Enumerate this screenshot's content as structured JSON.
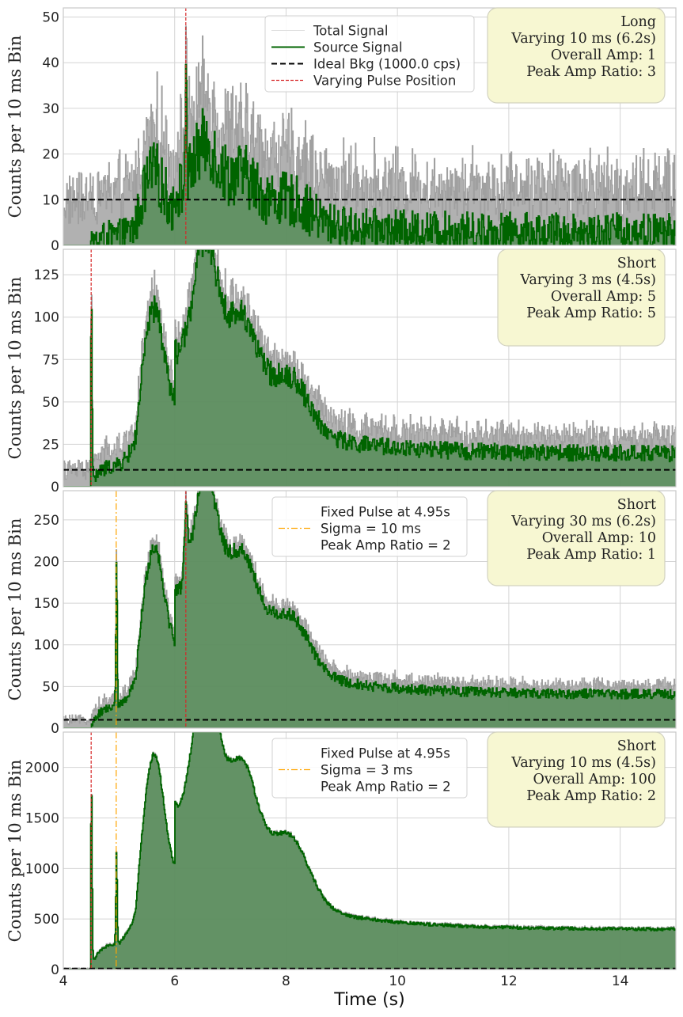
{
  "chart_data": [
    {
      "type": "line",
      "panel": "top",
      "ylabel": "Counts per 10 ms Bin",
      "xlabel": "",
      "xlim": [
        4,
        15
      ],
      "ylim": [
        0,
        52
      ],
      "yticks": [
        0,
        10,
        20,
        30,
        40,
        50
      ],
      "xticks": [
        4,
        6,
        8,
        10,
        12,
        14
      ],
      "background_level": 10,
      "varying_pulse_x": 6.2,
      "fixed_pulse_x": null,
      "source_scale": 16.5,
      "pulse_peak": 42,
      "varying_width_s": 0.01,
      "noise": 5,
      "series": [
        {
          "name": "Total Signal",
          "color": "#a0a0a0"
        },
        {
          "name": "Source Signal",
          "color": "#006400"
        },
        {
          "name": "Ideal Bkg (1000.0 cps)",
          "color": "#000000"
        },
        {
          "name": "Varying Pulse Position",
          "color": "#d62728"
        }
      ],
      "legend": {
        "placement": "top-center",
        "entries": [
          "Total Signal",
          "Source Signal",
          "Ideal Bkg (1000.0 cps)",
          "Varying Pulse Position"
        ]
      },
      "info_box": [
        "Long",
        "Varying 10 ms (6.2s)",
        "Overall Amp: 1",
        "Peak Amp Ratio: 3"
      ]
    },
    {
      "type": "line",
      "panel": "second",
      "ylabel": "Counts per 10 ms Bin",
      "xlabel": "",
      "xlim": [
        4,
        15
      ],
      "ylim": [
        0,
        140
      ],
      "yticks": [
        0,
        25,
        50,
        75,
        100,
        125
      ],
      "xticks": [
        4,
        6,
        8,
        10,
        12,
        14
      ],
      "background_level": 10,
      "varying_pulse_x": 4.5,
      "fixed_pulse_x": null,
      "source_scale": 108,
      "pulse_peak": 108,
      "varying_width_s": 0.003,
      "noise": 6,
      "series": [
        {
          "name": "Total Signal",
          "color": "#a0a0a0"
        },
        {
          "name": "Source Signal",
          "color": "#006400"
        },
        {
          "name": "Ideal Bkg (1000.0 cps)",
          "color": "#000000"
        },
        {
          "name": "Varying Pulse Position",
          "color": "#d62728"
        }
      ],
      "legend": null,
      "info_box": [
        "Short",
        "Varying 3 ms (4.5s)",
        "Overall Amp: 5",
        "Peak Amp Ratio: 5"
      ]
    },
    {
      "type": "line",
      "panel": "third",
      "ylabel": "Counts per 10 ms Bin",
      "xlabel": "",
      "xlim": [
        4,
        15
      ],
      "ylim": [
        0,
        285
      ],
      "yticks": [
        0,
        50,
        100,
        150,
        200,
        250
      ],
      "xticks": [
        4,
        6,
        8,
        10,
        12,
        14
      ],
      "background_level": 10,
      "varying_pulse_x": 6.2,
      "fixed_pulse_x": 4.95,
      "fixed_pulse_peak": 205,
      "source_scale": 225,
      "pulse_peak": 265,
      "varying_width_s": 0.03,
      "noise": 7,
      "series": [
        {
          "name": "Total Signal",
          "color": "#a0a0a0"
        },
        {
          "name": "Source Signal",
          "color": "#006400"
        },
        {
          "name": "Ideal Bkg (1000.0 cps)",
          "color": "#000000"
        },
        {
          "name": "Fixed Pulse",
          "color": "#ffa500"
        }
      ],
      "legend": {
        "placement": "top-center",
        "entries": [
          "Fixed Pulse at 4.95s",
          "Sigma = 10 ms",
          "Peak Amp Ratio = 2"
        ]
      },
      "info_box": [
        "Short",
        "Varying 30 ms (6.2s)",
        "Overall Amp: 10",
        "Peak Amp Ratio: 1"
      ]
    },
    {
      "type": "line",
      "panel": "bottom",
      "ylabel": "Counts per 10 ms Bin",
      "xlabel": "Time (s)",
      "xlim": [
        4,
        15
      ],
      "ylim": [
        0,
        2350
      ],
      "yticks": [
        0,
        500,
        1000,
        1500,
        2000
      ],
      "xticks": [
        4,
        6,
        8,
        10,
        12,
        14
      ],
      "background_level": 10,
      "varying_pulse_x": 4.5,
      "fixed_pulse_x": 4.95,
      "fixed_pulse_peak": 1160,
      "source_scale": 2200,
      "pulse_peak": 1810,
      "varying_width_s": 0.01,
      "noise": 18,
      "series": [
        {
          "name": "Total Signal",
          "color": "#a0a0a0"
        },
        {
          "name": "Source Signal",
          "color": "#006400"
        },
        {
          "name": "Ideal Bkg (1000.0 cps)",
          "color": "#000000"
        },
        {
          "name": "Fixed Pulse",
          "color": "#ffa500"
        }
      ],
      "legend": {
        "placement": "top-center",
        "entries": [
          "Fixed Pulse at 4.95s",
          "Sigma = 3 ms",
          "Peak Amp Ratio = 2"
        ]
      },
      "info_box": [
        "Short",
        "Varying 10 ms (4.5s)",
        "Overall Amp: 100",
        "Peak Amp Ratio: 2"
      ]
    }
  ]
}
